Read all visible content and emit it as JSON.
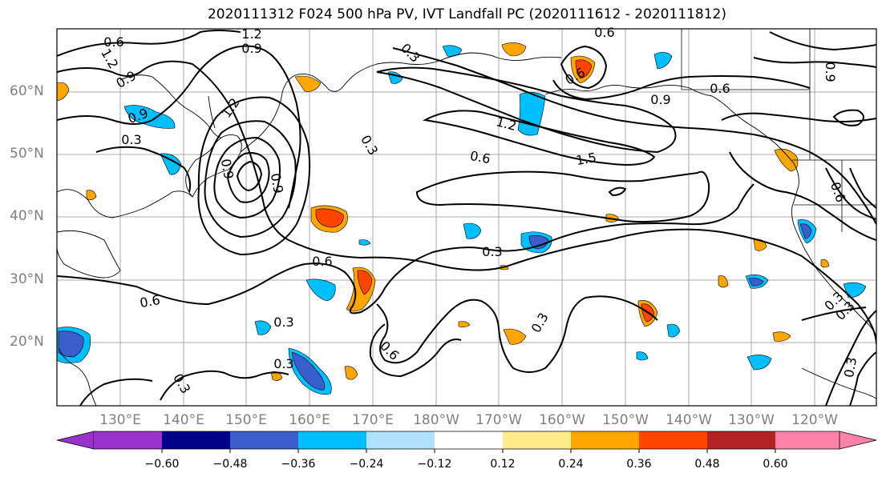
{
  "title": "2020111312 F024 500 hPa PV, IVT Landfall PC (2020111612 - 2020111812)",
  "lat_labels": [
    "60°N",
    "50°N",
    "40°N",
    "30°N",
    "20°N"
  ],
  "lon_labels": [
    "130°E",
    "140°E",
    "150°E",
    "160°E",
    "170°E",
    "180°W",
    "170°W",
    "160°W",
    "150°W",
    "140°W",
    "130°W",
    "120°W"
  ],
  "contour_labels": [
    "0.6",
    "1.2",
    "0.9",
    "0.9",
    "0.3",
    "1.2",
    "0.9",
    "0.3",
    "1.2",
    "0.9",
    "0.3",
    "0.6",
    "1.2",
    "0.6",
    "1.5",
    "0.9",
    "0.6",
    "0.9",
    "0.6",
    "0.3",
    "0.6",
    "0.3",
    "0.6",
    "0.3",
    "0.3",
    "0.3",
    "0.3",
    "0.6",
    "0.3",
    "0.3",
    "0.9",
    "0.6"
  ],
  "colorbar": {
    "colors": [
      "#9932cc",
      "#00008b",
      "#3a5fcd",
      "#00bfff",
      "#b0e2ff",
      "#ffffff",
      "#ffec8b",
      "#ffa500",
      "#ff4500",
      "#b22222",
      "#ff82ab"
    ],
    "ticks": [
      "−0.60",
      "−0.48",
      "−0.36",
      "−0.24",
      "−0.12",
      "0.12",
      "0.24",
      "0.36",
      "0.48",
      "0.60"
    ]
  }
}
